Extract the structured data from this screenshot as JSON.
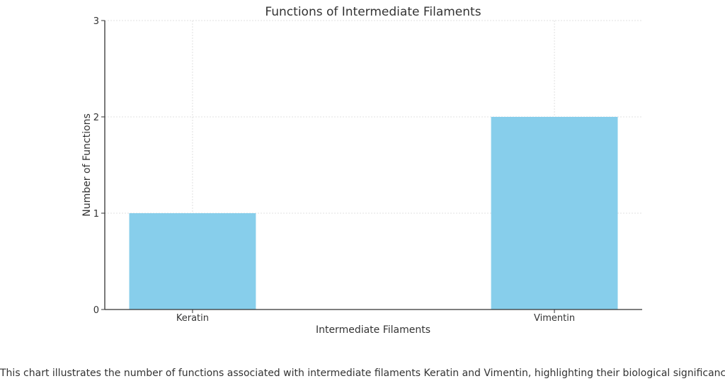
{
  "chart_data": {
    "type": "bar",
    "title": "Functions of Intermediate Filaments",
    "xlabel": "Intermediate Filaments",
    "ylabel": "Number of Functions",
    "categories": [
      "Keratin",
      "Vimentin"
    ],
    "values": [
      1,
      2
    ],
    "ylim": [
      0,
      3
    ],
    "yticks": [
      0,
      1,
      2,
      3
    ],
    "grid": true,
    "bar_color": "#87CEEB"
  },
  "caption": "This chart illustrates the number of functions associated with intermediate filaments Keratin and Vimentin, highlighting their biological significance."
}
